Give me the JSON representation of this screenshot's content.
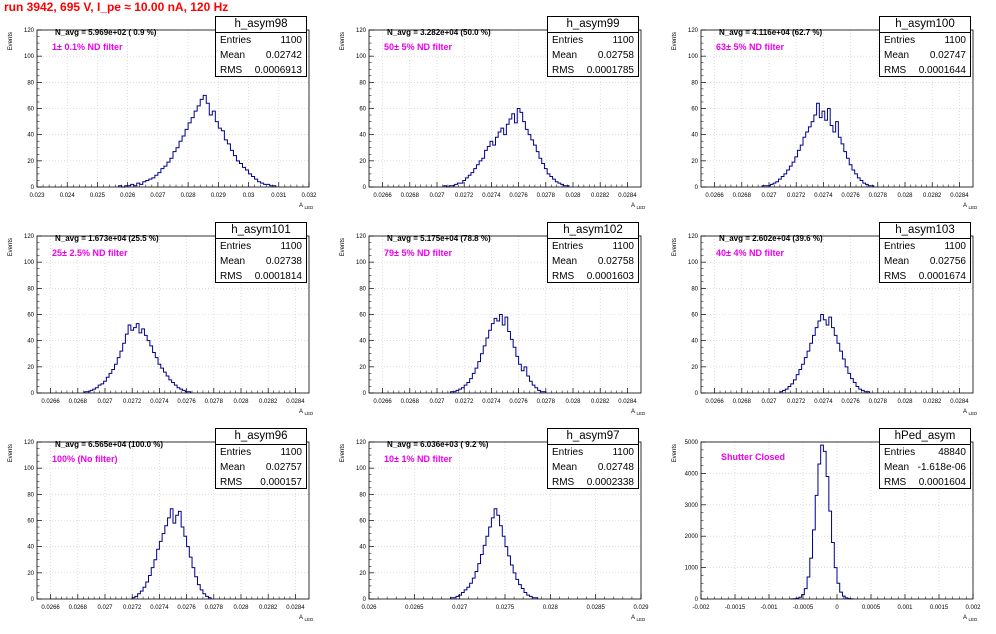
{
  "page_title": "run 3942,   695 V, I_pe ≈ 10.00 nA, 120 Hz",
  "y_title": "Events",
  "x_title_main": "A",
  "x_title_sub": "LED",
  "stat_labels": {
    "entries": "Entries",
    "mean": "Mean",
    "rms": "RMS"
  },
  "colors": {
    "histogram": "#00008b",
    "title": "#ff0000",
    "annotation": "#ee00ee",
    "grid": "#c8c8c8"
  },
  "chart_data": [
    {
      "type": "histogram",
      "name": "h_asym98",
      "navg_label": "N_avg = 5.969e+02 ( 0.9 %)",
      "filter_label": "1± 0.1% ND filter",
      "stats": {
        "entries": "1100",
        "mean": "0.02742",
        "rms": "0.0006913"
      },
      "xlim": [
        0.023,
        0.032
      ],
      "ylim": [
        0,
        120
      ],
      "xticks": [
        "0.023",
        "0.024",
        "0.025",
        "0.026",
        "0.027",
        "0.028",
        "0.029",
        "0.03",
        "0.031",
        "0.032"
      ],
      "yticks": [
        0,
        20,
        40,
        60,
        80,
        100,
        120
      ],
      "x_start": 0.0257,
      "bin_width": 0.0001,
      "counts": [
        1,
        0,
        1,
        1,
        2,
        1,
        3,
        2,
        4,
        5,
        6,
        7,
        9,
        11,
        14,
        16,
        19,
        22,
        27,
        30,
        35,
        39,
        44,
        49,
        53,
        58,
        62,
        67,
        70,
        64,
        55,
        58,
        50,
        45,
        43,
        36,
        33,
        28,
        24,
        20,
        18,
        15,
        13,
        10,
        8,
        6,
        4,
        3,
        2,
        2,
        1,
        1
      ]
    },
    {
      "type": "histogram",
      "name": "h_asym99",
      "navg_label": "N_avg = 3.282e+04 (50.0 %)",
      "filter_label": "50± 5% ND filter",
      "stats": {
        "entries": "1100",
        "mean": "0.02758",
        "rms": "0.0001785"
      },
      "xlim": [
        0.0265,
        0.0285
      ],
      "ylim": [
        0,
        120
      ],
      "xticks": [
        "0.0266",
        "0.0268",
        "0.027",
        "0.0272",
        "0.0274",
        "0.0276",
        "0.0278",
        "0.028",
        "0.0282",
        "0.0284"
      ],
      "yticks": [
        0,
        20,
        40,
        60,
        80,
        100,
        120
      ],
      "x_start": 0.02705,
      "bin_width": 2e-05,
      "counts": [
        1,
        0,
        1,
        1,
        2,
        3,
        3,
        5,
        7,
        9,
        11,
        14,
        17,
        20,
        22,
        28,
        31,
        35,
        32,
        38,
        42,
        45,
        40,
        48,
        52,
        56,
        49,
        60,
        57,
        50,
        44,
        40,
        36,
        32,
        27,
        22,
        18,
        14,
        10,
        8,
        6,
        4,
        3,
        2,
        1,
        1
      ]
    },
    {
      "type": "histogram",
      "name": "h_asym100",
      "navg_label": "N_avg = 4.116e+04 (62.7 %)",
      "filter_label": "63± 5% ND filter",
      "stats": {
        "entries": "1100",
        "mean": "0.02747",
        "rms": "0.0001644"
      },
      "xlim": [
        0.0265,
        0.0285
      ],
      "ylim": [
        0,
        120
      ],
      "xticks": [
        "0.0266",
        "0.0268",
        "0.027",
        "0.0272",
        "0.0274",
        "0.0276",
        "0.0278",
        "0.028",
        "0.0282",
        "0.0284"
      ],
      "yticks": [
        0,
        20,
        40,
        60,
        80,
        100,
        120
      ],
      "x_start": 0.02695,
      "bin_width": 2e-05,
      "counts": [
        1,
        1,
        1,
        2,
        3,
        4,
        6,
        8,
        10,
        13,
        16,
        19,
        23,
        28,
        32,
        38,
        42,
        46,
        50,
        55,
        64,
        53,
        58,
        51,
        60,
        47,
        42,
        50,
        38,
        33,
        27,
        22,
        17,
        13,
        10,
        7,
        5,
        3,
        2,
        1,
        1
      ]
    },
    {
      "type": "histogram",
      "name": "h_asym101",
      "navg_label": "N_avg = 1.673e+04 (25.5 %)",
      "filter_label": "25± 2.5% ND filter",
      "stats": {
        "entries": "1100",
        "mean": "0.02738",
        "rms": "0.0001814"
      },
      "xlim": [
        0.0265,
        0.0285
      ],
      "ylim": [
        0,
        120
      ],
      "xticks": [
        "0.0266",
        "0.0268",
        "0.027",
        "0.0272",
        "0.0274",
        "0.0276",
        "0.0278",
        "0.028",
        "0.0282",
        "0.0284"
      ],
      "yticks": [
        0,
        20,
        40,
        60,
        80,
        100,
        120
      ],
      "x_start": 0.02685,
      "bin_width": 2e-05,
      "counts": [
        1,
        1,
        2,
        3,
        4,
        6,
        7,
        9,
        12,
        15,
        18,
        22,
        27,
        32,
        38,
        45,
        52,
        48,
        50,
        53,
        46,
        49,
        44,
        40,
        36,
        31,
        27,
        22,
        19,
        16,
        13,
        10,
        8,
        6,
        4,
        3,
        2,
        1,
        1
      ]
    },
    {
      "type": "histogram",
      "name": "h_asym102",
      "navg_label": "N_avg = 5.175e+04 (78.8 %)",
      "filter_label": "79± 5% ND filter",
      "stats": {
        "entries": "1100",
        "mean": "0.02758",
        "rms": "0.0001603"
      },
      "xlim": [
        0.0265,
        0.0285
      ],
      "ylim": [
        0,
        120
      ],
      "xticks": [
        "0.0266",
        "0.0268",
        "0.027",
        "0.0272",
        "0.0274",
        "0.0276",
        "0.0278",
        "0.028",
        "0.0282",
        "0.0284"
      ],
      "yticks": [
        0,
        20,
        40,
        60,
        80,
        100,
        120
      ],
      "x_start": 0.0271,
      "bin_width": 2e-05,
      "counts": [
        1,
        1,
        2,
        3,
        4,
        6,
        8,
        11,
        15,
        19,
        24,
        30,
        36,
        42,
        48,
        53,
        57,
        55,
        60,
        52,
        58,
        47,
        41,
        35,
        28,
        22,
        17,
        20,
        13,
        9,
        6,
        4,
        2,
        1,
        1
      ]
    },
    {
      "type": "histogram",
      "name": "h_asym103",
      "navg_label": "N_avg = 2.602e+04 (39.6 %)",
      "filter_label": "40± 4% ND filter",
      "stats": {
        "entries": "1100",
        "mean": "0.02756",
        "rms": "0.0001674"
      },
      "xlim": [
        0.0265,
        0.0285
      ],
      "ylim": [
        0,
        120
      ],
      "xticks": [
        "0.0266",
        "0.0268",
        "0.027",
        "0.0272",
        "0.0274",
        "0.0276",
        "0.0278",
        "0.028",
        "0.0282",
        "0.0284"
      ],
      "yticks": [
        0,
        20,
        40,
        60,
        80,
        100,
        120
      ],
      "x_start": 0.02708,
      "bin_width": 2e-05,
      "counts": [
        1,
        2,
        3,
        5,
        7,
        10,
        14,
        18,
        22,
        27,
        32,
        38,
        44,
        50,
        55,
        60,
        56,
        52,
        58,
        50,
        44,
        38,
        32,
        26,
        20,
        15,
        11,
        8,
        5,
        3,
        2,
        1,
        1
      ]
    },
    {
      "type": "histogram",
      "name": "h_asym96",
      "navg_label": "N_avg = 6.565e+04 (100.0 %)",
      "filter_label": "100% (No filter)",
      "stats": {
        "entries": "1100",
        "mean": "0.02757",
        "rms": "0.000157"
      },
      "xlim": [
        0.0265,
        0.0285
      ],
      "ylim": [
        0,
        120
      ],
      "xticks": [
        "0.0266",
        "0.0268",
        "0.027",
        "0.0272",
        "0.0274",
        "0.0276",
        "0.0278",
        "0.028",
        "0.0282",
        "0.0284"
      ],
      "yticks": [
        0,
        20,
        40,
        60,
        80,
        100,
        120
      ],
      "x_start": 0.0272,
      "bin_width": 2e-05,
      "counts": [
        1,
        2,
        4,
        6,
        9,
        13,
        18,
        24,
        30,
        38,
        44,
        50,
        56,
        62,
        69,
        58,
        64,
        67,
        55,
        48,
        40,
        32,
        24,
        17,
        11,
        7,
        4,
        2,
        1
      ]
    },
    {
      "type": "histogram",
      "name": "h_asym97",
      "navg_label": "N_avg = 6.036e+03 ( 9.2 %)",
      "filter_label": "10± 1% ND filter",
      "stats": {
        "entries": "1100",
        "mean": "0.02748",
        "rms": "0.0002338"
      },
      "xlim": [
        0.026,
        0.029
      ],
      "ylim": [
        0,
        120
      ],
      "xticks": [
        "0.026",
        "0.0265",
        "0.027",
        "0.0275",
        "0.028",
        "0.0285",
        "0.029"
      ],
      "yticks": [
        0,
        20,
        40,
        60,
        80,
        100,
        120
      ],
      "x_start": 0.0269,
      "bin_width": 3e-05,
      "counts": [
        1,
        1,
        2,
        3,
        5,
        7,
        9,
        12,
        16,
        21,
        27,
        34,
        41,
        48,
        55,
        62,
        69,
        64,
        56,
        48,
        40,
        33,
        26,
        20,
        15,
        11,
        8,
        5,
        3,
        2,
        1,
        1
      ]
    },
    {
      "type": "histogram",
      "name": "hPed_asym",
      "navg_label": "",
      "filter_label": "Shutter Closed",
      "stats": {
        "entries": "48840",
        "mean": "-1.618e-06",
        "rms": "0.0001604"
      },
      "xlim": [
        -0.002,
        0.002
      ],
      "ylim": [
        0,
        5000
      ],
      "xticks": [
        "-0.002",
        "-0.0015",
        "-0.001",
        "-0.0005",
        "0",
        "0.0005",
        "0.001",
        "0.0015",
        "0.002"
      ],
      "yticks": [
        0,
        1000,
        2000,
        3000,
        4000,
        5000
      ],
      "x_start": -0.00068,
      "bin_width": 4e-05,
      "counts": [
        3,
        8,
        22,
        55,
        140,
        330,
        700,
        1300,
        2200,
        3300,
        4300,
        4900,
        4700,
        3900,
        2800,
        1800,
        1000,
        500,
        220,
        90,
        35,
        12,
        4
      ]
    }
  ]
}
